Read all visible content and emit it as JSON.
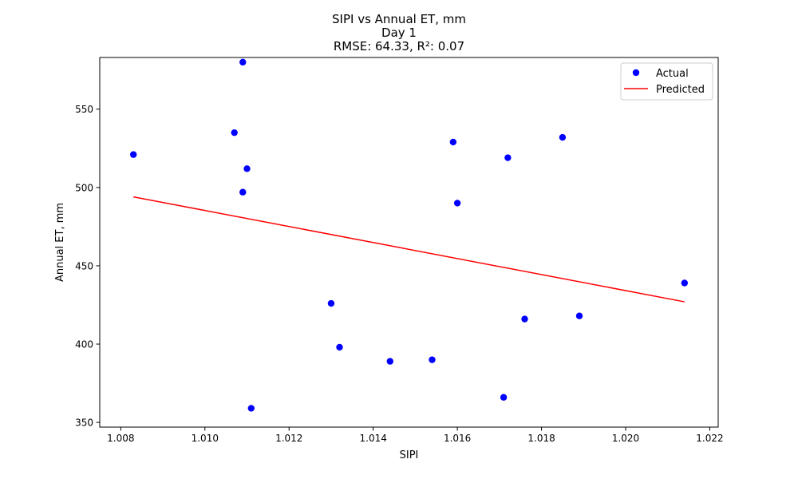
{
  "chart_data": {
    "type": "scatter",
    "title": "SIPI vs Annual ET, mm",
    "subtitle": "Day 1",
    "metrics": "RMSE: 64.33, R²: 0.07",
    "xlabel": "SIPI",
    "ylabel": "Annual ET, mm",
    "xlim": [
      1.0075,
      1.0222
    ],
    "ylim": [
      347,
      583
    ],
    "xticks": [
      1.008,
      1.01,
      1.012,
      1.014,
      1.016,
      1.018,
      1.02,
      1.022
    ],
    "xtick_labels": [
      "1.008",
      "1.010",
      "1.012",
      "1.014",
      "1.016",
      "1.018",
      "1.020",
      "1.022"
    ],
    "yticks": [
      350,
      400,
      450,
      500,
      550
    ],
    "ytick_labels": [
      "350",
      "400",
      "450",
      "500",
      "550"
    ],
    "grid": false,
    "legend_position": "top-right",
    "series": [
      {
        "name": "Actual",
        "kind": "scatter",
        "color": "#0000ff",
        "points": [
          [
            1.0083,
            521
          ],
          [
            1.0107,
            535
          ],
          [
            1.0109,
            580
          ],
          [
            1.0109,
            497
          ],
          [
            1.011,
            512
          ],
          [
            1.0111,
            359
          ],
          [
            1.013,
            426
          ],
          [
            1.0132,
            398
          ],
          [
            1.0144,
            389
          ],
          [
            1.0154,
            390
          ],
          [
            1.0159,
            529
          ],
          [
            1.016,
            490
          ],
          [
            1.0171,
            366
          ],
          [
            1.0172,
            519
          ],
          [
            1.0176,
            416
          ],
          [
            1.0185,
            532
          ],
          [
            1.0189,
            418
          ],
          [
            1.0214,
            439
          ]
        ]
      },
      {
        "name": "Predicted",
        "kind": "line",
        "color": "#ff0000",
        "points": [
          [
            1.0083,
            494
          ],
          [
            1.0214,
            427
          ]
        ]
      }
    ]
  }
}
